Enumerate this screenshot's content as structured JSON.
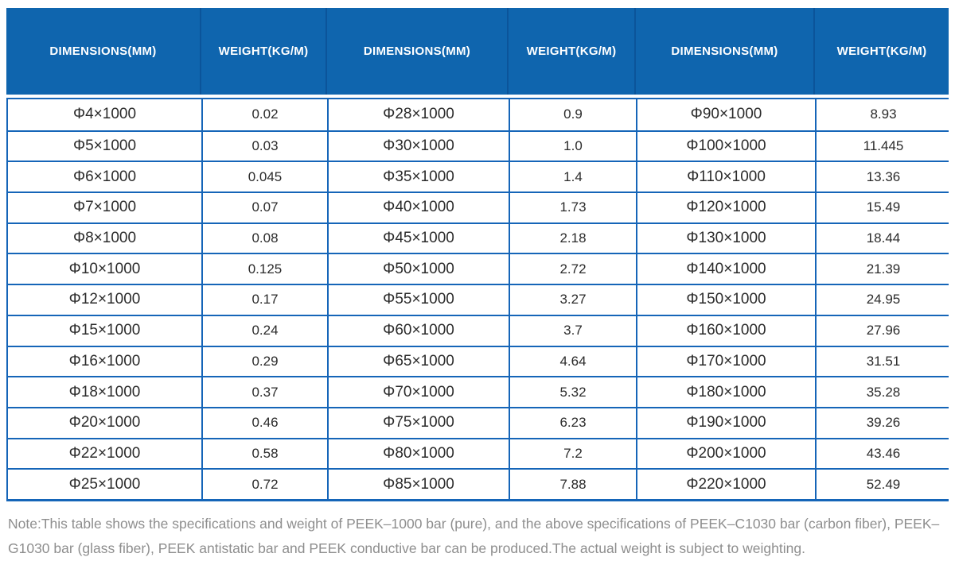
{
  "table": {
    "headers": [
      "DIMENSIONS(MM)",
      "WEIGHT(KG/M)",
      "DIMENSIONS(MM)",
      "WEIGHT(KG/M)",
      "DIMENSIONS(MM)",
      "WEIGHT(KG/M)"
    ],
    "rows": [
      [
        "Φ4×1000",
        "0.02",
        "Φ28×1000",
        "0.9",
        "Φ90×1000",
        "8.93"
      ],
      [
        "Φ5×1000",
        "0.03",
        "Φ30×1000",
        "1.0",
        "Φ100×1000",
        "11.445"
      ],
      [
        "Φ6×1000",
        "0.045",
        "Φ35×1000",
        "1.4",
        "Φ110×1000",
        "13.36"
      ],
      [
        "Φ7×1000",
        "0.07",
        "Φ40×1000",
        "1.73",
        "Φ120×1000",
        "15.49"
      ],
      [
        "Φ8×1000",
        "0.08",
        "Φ45×1000",
        "2.18",
        "Φ130×1000",
        "18.44"
      ],
      [
        "Φ10×1000",
        "0.125",
        "Φ50×1000",
        "2.72",
        "Φ140×1000",
        "21.39"
      ],
      [
        "Φ12×1000",
        "0.17",
        "Φ55×1000",
        "3.27",
        "Φ150×1000",
        "24.95"
      ],
      [
        "Φ15×1000",
        "0.24",
        "Φ60×1000",
        "3.7",
        "Φ160×1000",
        "27.96"
      ],
      [
        "Φ16×1000",
        "0.29",
        "Φ65×1000",
        "4.64",
        "Φ170×1000",
        "31.51"
      ],
      [
        "Φ18×1000",
        "0.37",
        "Φ70×1000",
        "5.32",
        "Φ180×1000",
        "35.28"
      ],
      [
        "Φ20×1000",
        "0.46",
        "Φ75×1000",
        "6.23",
        "Φ190×1000",
        "39.26"
      ],
      [
        "Φ22×1000",
        "0.58",
        "Φ80×1000",
        "7.2",
        "Φ200×1000",
        "43.46"
      ],
      [
        "Φ25×1000",
        "0.72",
        "Φ85×1000",
        "7.88",
        "Φ220×1000",
        "52.49"
      ]
    ]
  },
  "note": {
    "text": "Note:This table shows the specifications and weight of PEEK–1000 bar (pure), and the above specifications of PEEK–C1030 bar (carbon fiber), PEEK–G1030 bar (glass fiber), PEEK antistatic bar and PEEK conductive bar can be produced.The actual weight is subject to weighting."
  },
  "colors": {
    "header_bg": "#0F65AE",
    "header_separator": "#0B549A",
    "body_border": "#1565B8",
    "cell_text": "#2B2B2B",
    "note_text": "#8E8E8E"
  }
}
